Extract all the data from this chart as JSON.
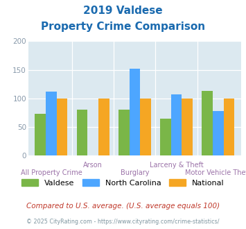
{
  "title_line1": "2019 Valdese",
  "title_line2": "Property Crime Comparison",
  "title_color": "#1a6aaf",
  "categories": [
    "All Property Crime",
    "Arson",
    "Burglary",
    "Larceny & Theft",
    "Motor Vehicle Theft"
  ],
  "valdese": [
    73,
    80,
    80,
    65,
    113
  ],
  "north_carolina": [
    112,
    0,
    152,
    107,
    78
  ],
  "national": [
    100,
    100,
    100,
    100,
    100
  ],
  "valdese_color": "#7ab648",
  "nc_color": "#4da6ff",
  "national_color": "#f5a623",
  "ylim": [
    0,
    200
  ],
  "yticks": [
    0,
    50,
    100,
    150,
    200
  ],
  "legend_labels": [
    "Valdese",
    "North Carolina",
    "National"
  ],
  "footnote1": "Compared to U.S. average. (U.S. average equals 100)",
  "footnote2": "© 2025 CityRating.com - https://www.cityrating.com/crime-statistics/",
  "footnote1_color": "#c0392b",
  "footnote2_color": "#7f96a0",
  "bg_color": "#dce9f0",
  "bar_width": 0.26,
  "xlabel_color": "#9b72a8",
  "ytick_color": "#8899aa"
}
